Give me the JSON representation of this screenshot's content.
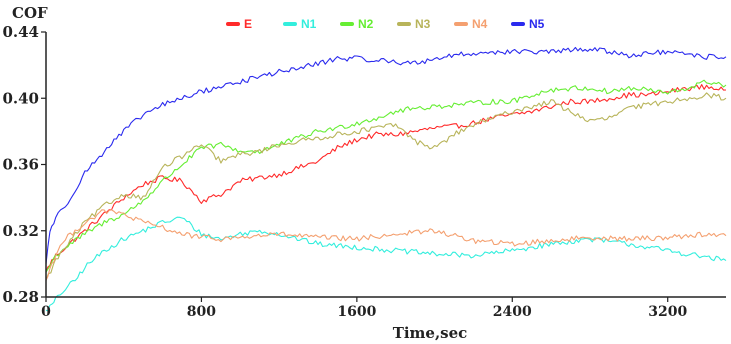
{
  "chart_data": {
    "type": "line",
    "ylabel": "COF",
    "xlabel": "Time,sec",
    "xlim": [
      0,
      3500
    ],
    "ylim": [
      0.28,
      0.44
    ],
    "x_ticks": [
      0,
      800,
      1600,
      2400,
      3200
    ],
    "y_ticks": [
      0.28,
      0.32,
      0.36,
      0.4,
      0.44
    ],
    "x_tick_labels": [
      "0",
      "800",
      "1600",
      "2400",
      "3200"
    ],
    "y_tick_labels": [
      "0.28",
      "0.32",
      "0.36",
      "0.40",
      "0.44"
    ],
    "grid": false,
    "legend_position": "top",
    "series": [
      {
        "name": "E",
        "color": "#ff2a2a",
        "x": [
          0,
          20,
          50,
          100,
          200,
          300,
          400,
          500,
          600,
          700,
          800,
          900,
          1000,
          1100,
          1200,
          1300,
          1400,
          1500,
          1600,
          1700,
          1800,
          1900,
          2000,
          2100,
          2200,
          2300,
          2400,
          2500,
          2600,
          2700,
          2800,
          2900,
          3000,
          3100,
          3200,
          3300,
          3400,
          3500
        ],
        "y": [
          0.295,
          0.3,
          0.305,
          0.31,
          0.32,
          0.33,
          0.34,
          0.348,
          0.352,
          0.35,
          0.338,
          0.342,
          0.35,
          0.352,
          0.354,
          0.358,
          0.362,
          0.37,
          0.375,
          0.378,
          0.378,
          0.38,
          0.382,
          0.383,
          0.385,
          0.388,
          0.39,
          0.392,
          0.395,
          0.398,
          0.398,
          0.4,
          0.402,
          0.402,
          0.404,
          0.406,
          0.407,
          0.405
        ]
      },
      {
        "name": "N1",
        "color": "#33eedd",
        "x": [
          0,
          30,
          60,
          100,
          150,
          200,
          300,
          400,
          500,
          600,
          700,
          800,
          900,
          1000,
          1100,
          1200,
          1400,
          1600,
          1800,
          2000,
          2200,
          2400,
          2600,
          2800,
          3000,
          3200,
          3400,
          3500
        ],
        "y": [
          0.272,
          0.275,
          0.28,
          0.285,
          0.29,
          0.298,
          0.308,
          0.315,
          0.32,
          0.325,
          0.328,
          0.318,
          0.315,
          0.318,
          0.32,
          0.318,
          0.312,
          0.31,
          0.308,
          0.306,
          0.305,
          0.308,
          0.312,
          0.315,
          0.312,
          0.308,
          0.304,
          0.302
        ]
      },
      {
        "name": "N2",
        "color": "#66ee33",
        "x": [
          0,
          50,
          100,
          200,
          300,
          400,
          500,
          600,
          700,
          800,
          900,
          1000,
          1100,
          1200,
          1300,
          1400,
          1500,
          1600,
          1700,
          1800,
          1900,
          2000,
          2100,
          2200,
          2300,
          2400,
          2500,
          2600,
          2700,
          2800,
          2900,
          3000,
          3100,
          3200,
          3300,
          3400,
          3500
        ],
        "y": [
          0.295,
          0.305,
          0.31,
          0.318,
          0.325,
          0.33,
          0.338,
          0.35,
          0.36,
          0.37,
          0.372,
          0.368,
          0.368,
          0.372,
          0.376,
          0.38,
          0.382,
          0.385,
          0.388,
          0.392,
          0.394,
          0.395,
          0.396,
          0.397,
          0.398,
          0.398,
          0.402,
          0.405,
          0.406,
          0.406,
          0.404,
          0.406,
          0.405,
          0.403,
          0.406,
          0.41,
          0.408
        ]
      },
      {
        "name": "N3",
        "color": "#b8b45a",
        "x": [
          0,
          50,
          100,
          200,
          300,
          400,
          500,
          600,
          700,
          800,
          900,
          1000,
          1100,
          1200,
          1300,
          1400,
          1500,
          1600,
          1700,
          1800,
          1900,
          2000,
          2100,
          2200,
          2300,
          2400,
          2500,
          2600,
          2700,
          2800,
          2900,
          3000,
          3100,
          3200,
          3300,
          3400,
          3500
        ],
        "y": [
          0.29,
          0.302,
          0.31,
          0.325,
          0.335,
          0.342,
          0.34,
          0.358,
          0.365,
          0.372,
          0.362,
          0.366,
          0.368,
          0.372,
          0.374,
          0.376,
          0.378,
          0.38,
          0.382,
          0.384,
          0.374,
          0.37,
          0.378,
          0.384,
          0.388,
          0.392,
          0.395,
          0.398,
          0.392,
          0.386,
          0.388,
          0.394,
          0.396,
          0.398,
          0.4,
          0.402,
          0.4
        ]
      },
      {
        "name": "N4",
        "color": "#f4a070",
        "x": [
          0,
          30,
          60,
          100,
          150,
          200,
          300,
          400,
          500,
          600,
          700,
          800,
          900,
          1000,
          1200,
          1400,
          1600,
          1800,
          2000,
          2200,
          2400,
          2600,
          2800,
          3000,
          3200,
          3400,
          3500
        ],
        "y": [
          0.29,
          0.3,
          0.308,
          0.315,
          0.32,
          0.325,
          0.332,
          0.33,
          0.325,
          0.322,
          0.318,
          0.316,
          0.315,
          0.316,
          0.318,
          0.316,
          0.315,
          0.318,
          0.32,
          0.314,
          0.312,
          0.314,
          0.316,
          0.315,
          0.316,
          0.318,
          0.317
        ]
      },
      {
        "name": "N5",
        "color": "#2a2aee",
        "x": [
          0,
          20,
          50,
          100,
          150,
          200,
          300,
          400,
          500,
          600,
          700,
          800,
          900,
          1000,
          1100,
          1200,
          1300,
          1400,
          1500,
          1600,
          1700,
          1800,
          1900,
          2000,
          2100,
          2200,
          2300,
          2400,
          2500,
          2600,
          2700,
          2800,
          2900,
          3000,
          3100,
          3200,
          3300,
          3400,
          3500
        ],
        "y": [
          0.3,
          0.32,
          0.328,
          0.335,
          0.345,
          0.355,
          0.368,
          0.38,
          0.39,
          0.396,
          0.4,
          0.404,
          0.407,
          0.41,
          0.413,
          0.416,
          0.418,
          0.421,
          0.424,
          0.424,
          0.423,
          0.422,
          0.421,
          0.424,
          0.426,
          0.427,
          0.428,
          0.428,
          0.428,
          0.428,
          0.429,
          0.43,
          0.428,
          0.426,
          0.427,
          0.428,
          0.426,
          0.425,
          0.425
        ]
      }
    ]
  }
}
